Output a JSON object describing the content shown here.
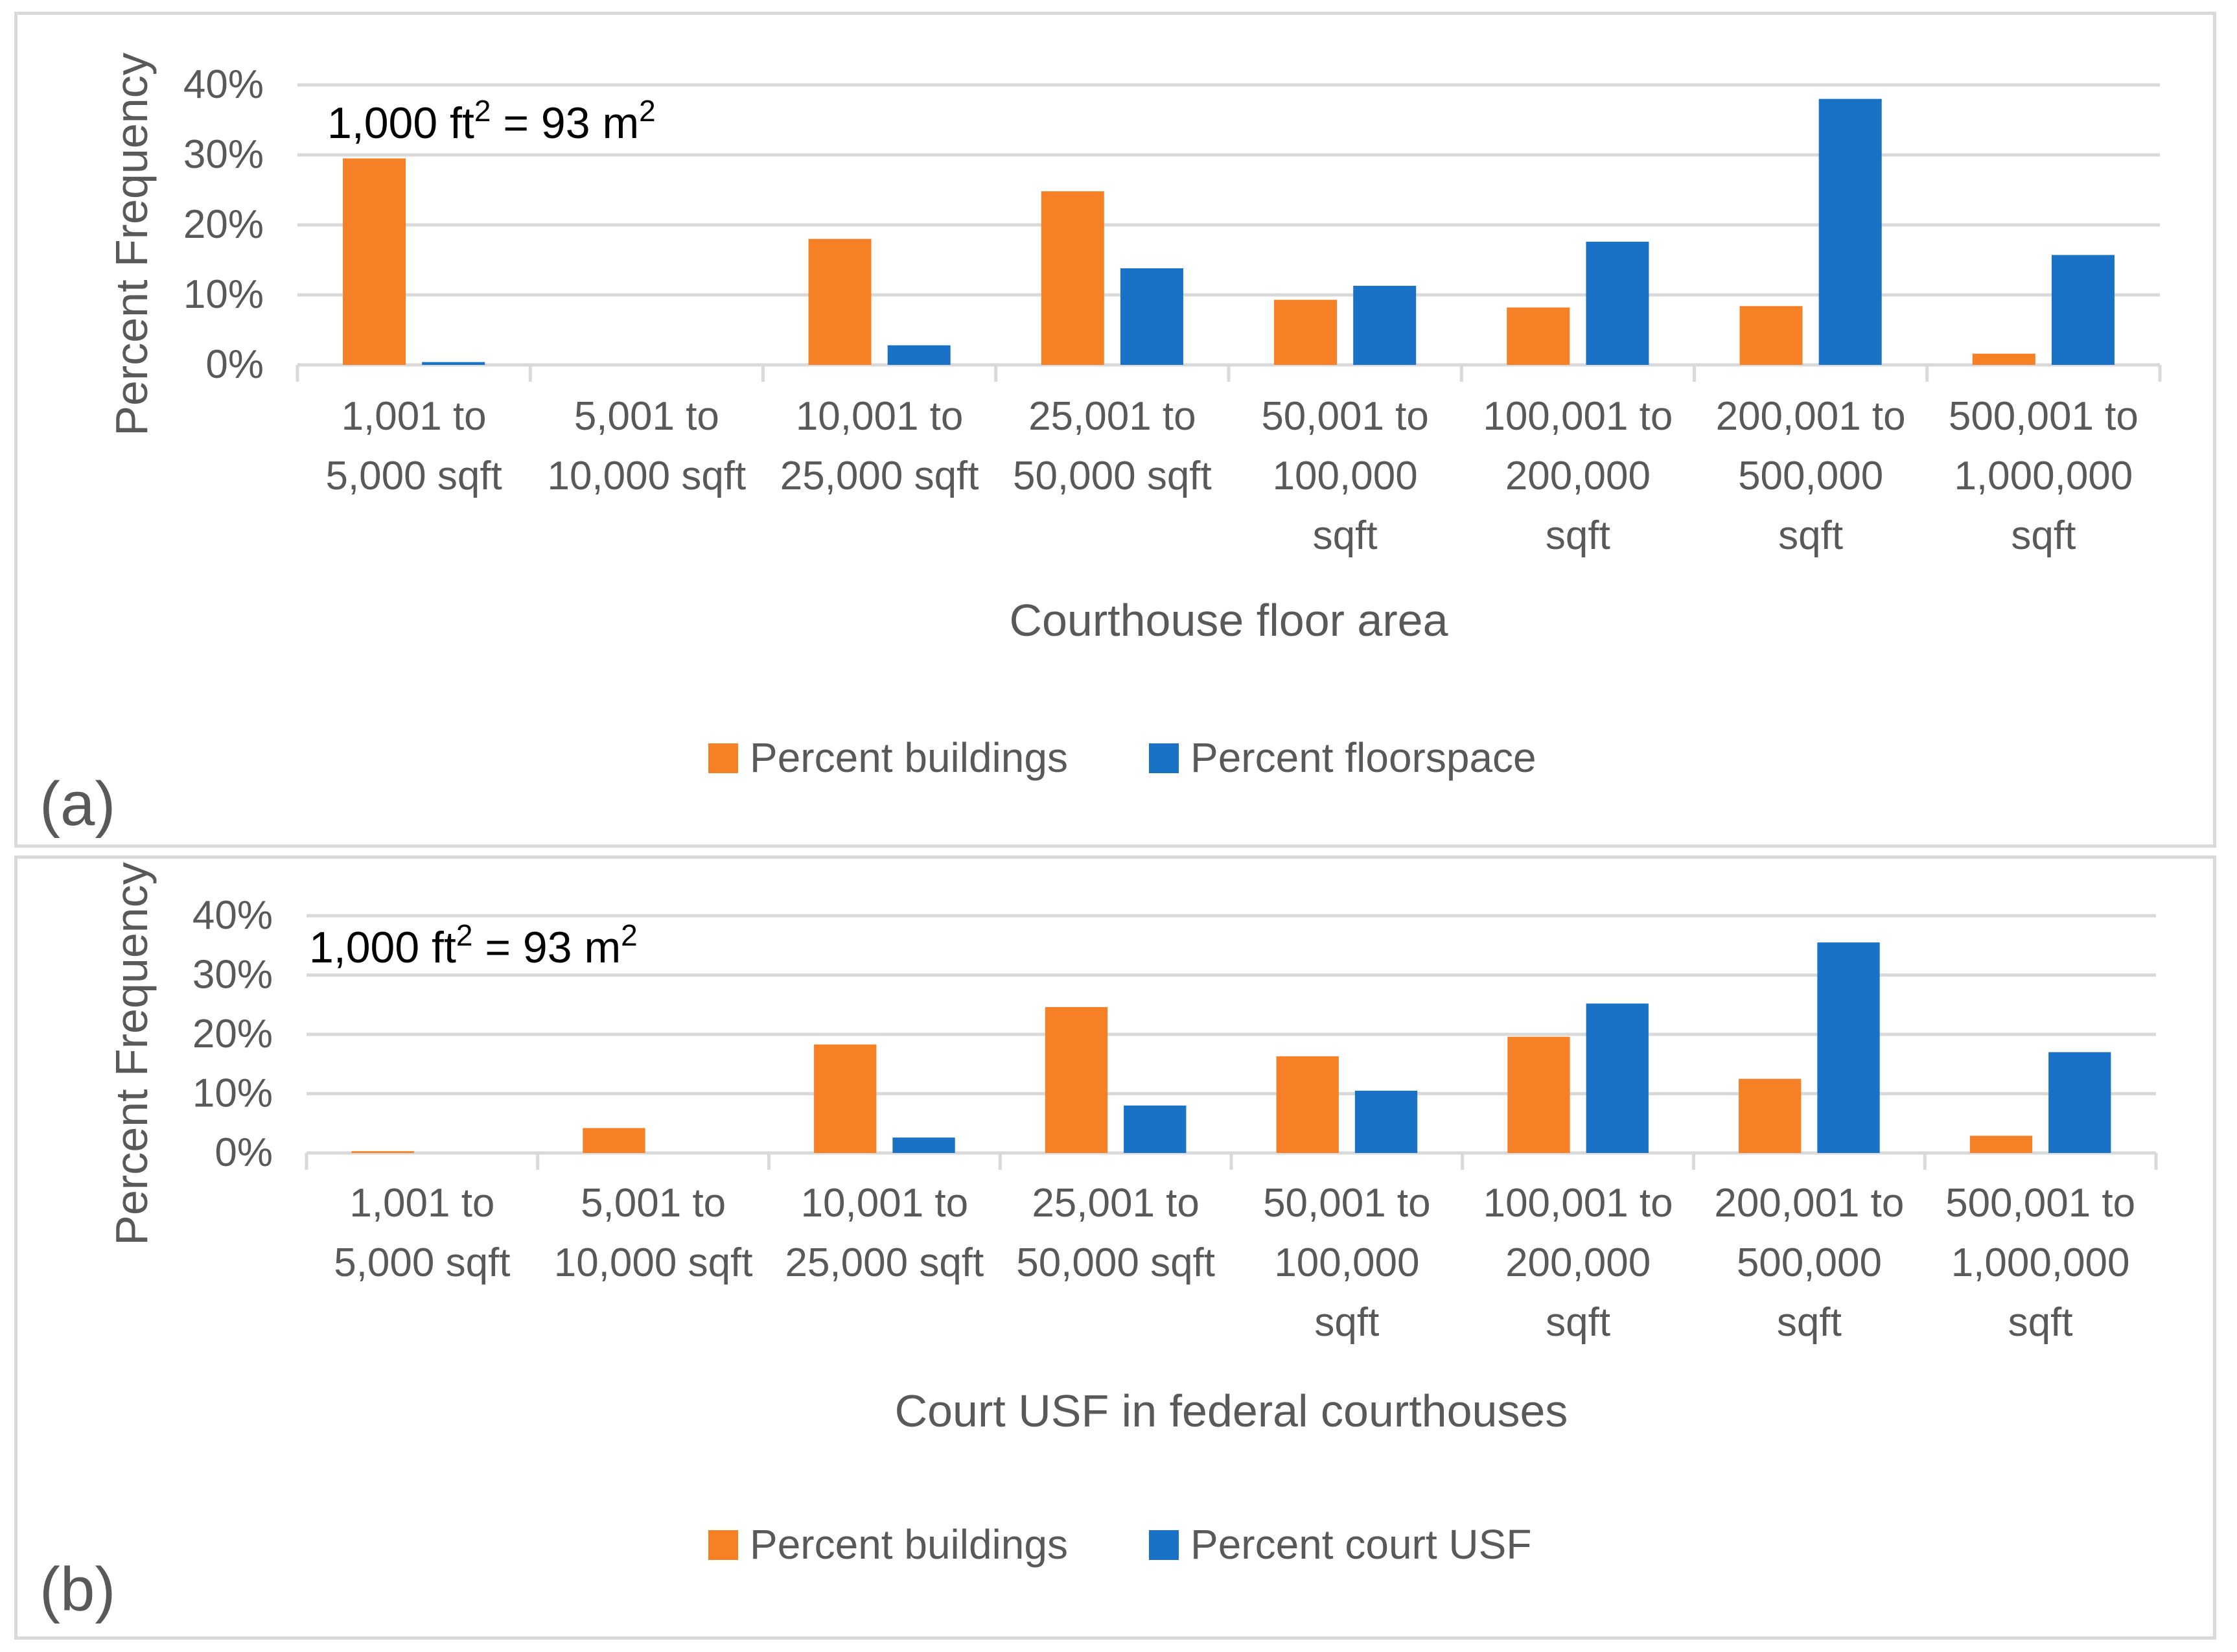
{
  "chart_data": [
    {
      "type": "bar",
      "panel_label": "(a)",
      "annotation": {
        "base": "1,000 ft",
        "sup1": "2",
        "mid": " = 93 m",
        "sup2": "2"
      },
      "xlabel": "Courthouse floor area",
      "ylabel": "Percent Frequency",
      "ylim": [
        0,
        40
      ],
      "yticks": [
        "0%",
        "10%",
        "20%",
        "30%",
        "40%"
      ],
      "grid": true,
      "legend_position": "bottom",
      "categories": [
        [
          "1,001 to",
          "5,000 sqft"
        ],
        [
          "5,001 to",
          "10,000 sqft"
        ],
        [
          "10,001 to",
          "25,000 sqft"
        ],
        [
          "25,001 to",
          "50,000 sqft"
        ],
        [
          "50,001 to",
          "100,000",
          "sqft"
        ],
        [
          "100,001 to",
          "200,000",
          "sqft"
        ],
        [
          "200,001 to",
          "500,000",
          "sqft"
        ],
        [
          "500,001 to",
          "1,000,000",
          "sqft"
        ]
      ],
      "series": [
        {
          "name": "Percent buildings",
          "color": "#f58025",
          "values": [
            29.5,
            0,
            18,
            24.8,
            9.3,
            8.2,
            8.4,
            1.6
          ]
        },
        {
          "name": "Percent floorspace",
          "color": "#1a72c7",
          "values": [
            0.4,
            0,
            2.8,
            13.8,
            11.3,
            17.6,
            38,
            15.7
          ]
        }
      ]
    },
    {
      "type": "bar",
      "panel_label": "(b)",
      "annotation": {
        "base": "1,000 ft",
        "sup1": "2",
        "mid": " = 93 m",
        "sup2": "2"
      },
      "xlabel": "Court USF in federal courthouses",
      "ylabel": "Percent Frequency",
      "ylim": [
        0,
        40
      ],
      "yticks": [
        "0%",
        "10%",
        "20%",
        "30%",
        "40%"
      ],
      "grid": true,
      "legend_position": "bottom",
      "categories": [
        [
          "1,001 to",
          "5,000 sqft"
        ],
        [
          "5,001 to",
          "10,000 sqft"
        ],
        [
          "10,001 to",
          "25,000 sqft"
        ],
        [
          "25,001 to",
          "50,000 sqft"
        ],
        [
          "50,001 to",
          "100,000",
          "sqft"
        ],
        [
          "100,001 to",
          "200,000",
          "sqft"
        ],
        [
          "200,001 to",
          "500,000",
          "sqft"
        ],
        [
          "500,001 to",
          "1,000,000",
          "sqft"
        ]
      ],
      "series": [
        {
          "name": "Percent buildings",
          "color": "#f58025",
          "values": [
            0.3,
            4.2,
            18.3,
            24.6,
            16.3,
            19.6,
            12.5,
            2.9
          ]
        },
        {
          "name": "Percent court USF",
          "color": "#1a72c7",
          "values": [
            0,
            0,
            2.6,
            8,
            10.5,
            25.2,
            35.5,
            17
          ]
        }
      ]
    }
  ]
}
